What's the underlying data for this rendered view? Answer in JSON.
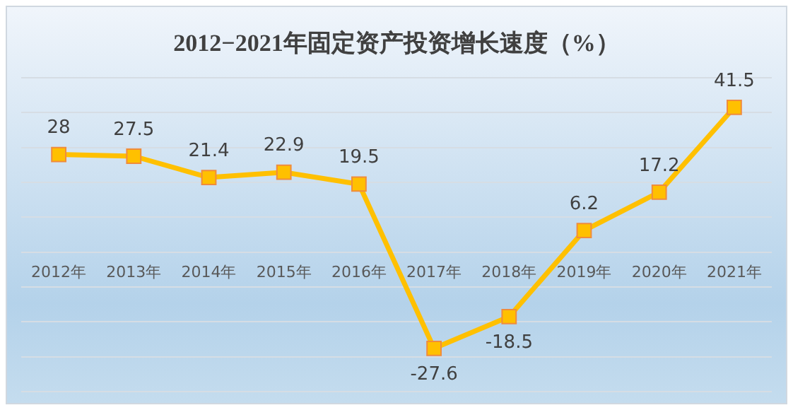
{
  "chart_data": {
    "type": "line",
    "title": "2012−2021年固定资产投资增长速度（%）",
    "categories": [
      "2012年",
      "2013年",
      "2014年",
      "2015年",
      "2016年",
      "2017年",
      "2018年",
      "2019年",
      "2020年",
      "2021年"
    ],
    "series": [
      {
        "color": "#ffc000",
        "values": [
          28,
          27.5,
          21.4,
          22.9,
          19.5,
          -27.6,
          -18.5,
          6.2,
          17.2,
          41.5
        ]
      }
    ],
    "ylim": [
      -40,
      50
    ],
    "yticks": [
      {
        "value": -40,
        "label": null
      },
      {
        "value": -30,
        "label": null
      },
      {
        "value": -20,
        "label": null
      },
      {
        "value": -10,
        "label": null
      },
      {
        "value": 0,
        "label": null
      },
      {
        "value": 10,
        "label": null
      },
      {
        "value": 20,
        "label": null
      },
      {
        "value": 30,
        "label": null
      },
      {
        "value": 40,
        "label": null
      },
      {
        "value": 50,
        "label": null
      }
    ],
    "grid": "y",
    "tick_labels": "x",
    "marker": "square",
    "line_style": "solid",
    "data_labels": true,
    "legend": false
  }
}
